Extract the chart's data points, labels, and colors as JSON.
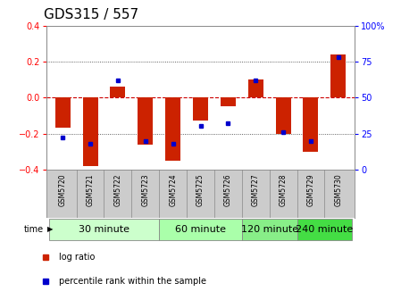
{
  "title": "GDS315 / 557",
  "samples": [
    "GSM5720",
    "GSM5721",
    "GSM5722",
    "GSM5723",
    "GSM5724",
    "GSM5725",
    "GSM5726",
    "GSM5727",
    "GSM5728",
    "GSM5729",
    "GSM5730"
  ],
  "log_ratio": [
    -0.17,
    -0.38,
    0.06,
    -0.26,
    -0.35,
    -0.13,
    -0.05,
    0.1,
    -0.2,
    -0.3,
    0.24
  ],
  "percentile": [
    22,
    18,
    62,
    20,
    18,
    30,
    32,
    62,
    26,
    20,
    78
  ],
  "groups": [
    {
      "label": "30 minute",
      "indices": [
        0,
        1,
        2,
        3
      ],
      "color": "#ccffcc"
    },
    {
      "label": "60 minute",
      "indices": [
        4,
        5,
        6
      ],
      "color": "#aaffaa"
    },
    {
      "label": "120 minute",
      "indices": [
        7,
        8
      ],
      "color": "#88ee88"
    },
    {
      "label": "240 minute",
      "indices": [
        9,
        10
      ],
      "color": "#44dd44"
    }
  ],
  "bar_color": "#cc2200",
  "dot_color": "#0000cc",
  "ylim_left": [
    -0.4,
    0.4
  ],
  "ylim_right": [
    0,
    100
  ],
  "yticks_left": [
    -0.4,
    -0.2,
    0.0,
    0.2,
    0.4
  ],
  "yticks_right": [
    0,
    25,
    50,
    75,
    100
  ],
  "hline_zero_color": "#cc0000",
  "dotted_color": "#333333",
  "bg_color": "#ffffff",
  "spine_color": "#888888",
  "tick_bg": "#cccccc",
  "title_fontsize": 11,
  "tick_fontsize": 7,
  "sample_fontsize": 5.5,
  "group_fontsize": 8,
  "legend_fontsize": 7,
  "time_fontsize": 7
}
